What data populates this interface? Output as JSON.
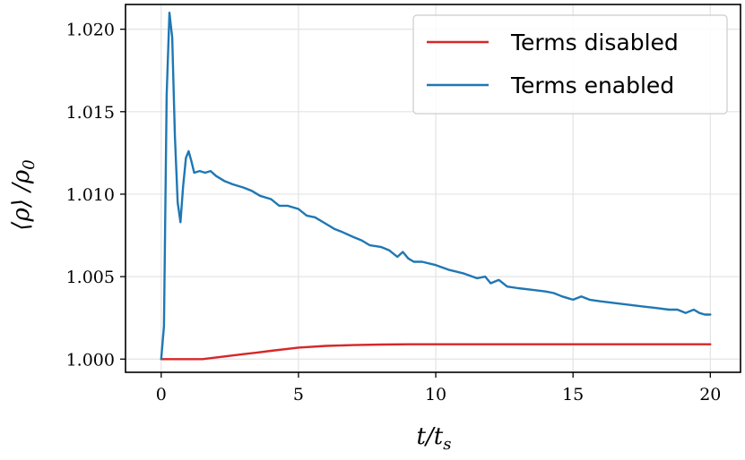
{
  "chart_data": {
    "type": "line",
    "xlabel": "t/t_s",
    "ylabel": "⟨ρ⟩ /ρ_0",
    "xlim": [
      -1.3,
      21.1
    ],
    "ylim": [
      0.9992,
      1.0215
    ],
    "x_ticks": [
      0,
      5,
      10,
      15,
      20
    ],
    "x_tick_labels": [
      "0",
      "5",
      "10",
      "15",
      "20"
    ],
    "y_ticks": [
      1.0,
      1.005,
      1.01,
      1.015,
      1.02
    ],
    "y_tick_labels": [
      "1.000",
      "1.005",
      "1.010",
      "1.015",
      "1.020"
    ],
    "grid": true,
    "legend_position": "top-right",
    "series": [
      {
        "name": "Terms disabled",
        "color": "#d62728",
        "x": [
          0,
          1,
          1.5,
          2,
          2.5,
          3,
          3.5,
          4,
          5,
          6,
          7,
          8,
          9,
          10,
          12,
          14,
          16,
          18,
          20
        ],
        "y": [
          1.0,
          1.0,
          1.0,
          1.0001,
          1.0002,
          1.0003,
          1.0004,
          1.0005,
          1.0007,
          1.0008,
          1.00085,
          1.00088,
          1.0009,
          1.0009,
          1.0009,
          1.0009,
          1.0009,
          1.0009,
          1.0009
        ]
      },
      {
        "name": "Terms enabled",
        "color": "#1f77b4",
        "x": [
          0,
          0.1,
          0.2,
          0.3,
          0.4,
          0.5,
          0.6,
          0.7,
          0.8,
          0.9,
          1.0,
          1.1,
          1.2,
          1.4,
          1.6,
          1.8,
          2.0,
          2.3,
          2.6,
          3.0,
          3.3,
          3.6,
          4.0,
          4.3,
          4.6,
          5.0,
          5.3,
          5.6,
          6.0,
          6.3,
          6.6,
          7.0,
          7.3,
          7.6,
          8.0,
          8.3,
          8.6,
          8.8,
          9.0,
          9.2,
          9.5,
          10.0,
          10.5,
          11.0,
          11.5,
          11.8,
          12.0,
          12.3,
          12.6,
          13.0,
          13.5,
          14.0,
          14.3,
          14.6,
          15.0,
          15.3,
          15.6,
          16.0,
          16.5,
          17.0,
          17.5,
          18.0,
          18.5,
          18.8,
          19.1,
          19.4,
          19.6,
          19.8,
          20.0
        ],
        "y": [
          1.0,
          1.002,
          1.016,
          1.021,
          1.0195,
          1.0135,
          1.0095,
          1.0083,
          1.0105,
          1.0122,
          1.0126,
          1.012,
          1.0113,
          1.0114,
          1.0113,
          1.0114,
          1.0111,
          1.0108,
          1.0106,
          1.0104,
          1.0102,
          1.0099,
          1.0097,
          1.0093,
          1.0093,
          1.0091,
          1.0087,
          1.0086,
          1.0082,
          1.0079,
          1.0077,
          1.0074,
          1.0072,
          1.0069,
          1.0068,
          1.0066,
          1.0062,
          1.0065,
          1.0061,
          1.0059,
          1.0059,
          1.0057,
          1.0054,
          1.0052,
          1.0049,
          1.005,
          1.0046,
          1.0048,
          1.0044,
          1.0043,
          1.0042,
          1.0041,
          1.004,
          1.0038,
          1.0036,
          1.0038,
          1.0036,
          1.0035,
          1.0034,
          1.0033,
          1.0032,
          1.0031,
          1.003,
          1.003,
          1.0028,
          1.003,
          1.0028,
          1.0027,
          1.0027
        ]
      }
    ]
  }
}
